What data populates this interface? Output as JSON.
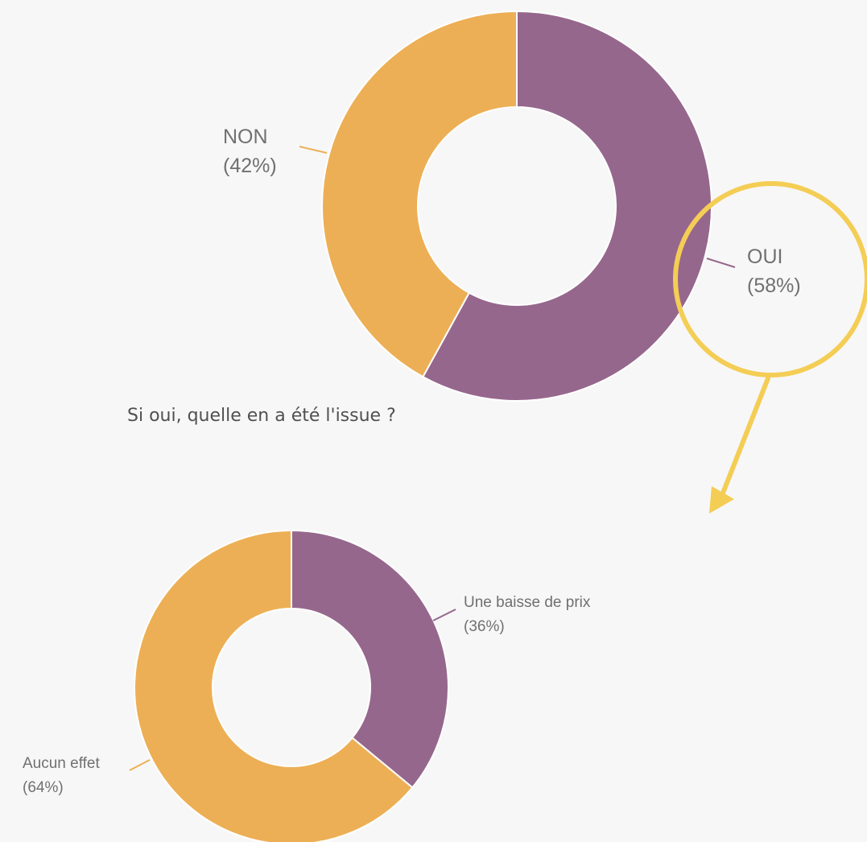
{
  "colors": {
    "oui": "#96678c",
    "non": "#edaf55",
    "highlight": "#f4cd55",
    "label_text": "#707070",
    "background": "#f7f7f7"
  },
  "question": "Si oui, quelle en a été l'issue ?",
  "chart_data": [
    {
      "type": "pie",
      "donut": true,
      "slices": [
        {
          "name": "OUI",
          "value": 58,
          "label": "OUI",
          "pct_label": "(58%)",
          "color": "#96678c"
        },
        {
          "name": "NON",
          "value": 42,
          "label": "NON",
          "pct_label": "(42%)",
          "color": "#edaf55"
        }
      ]
    },
    {
      "type": "pie",
      "donut": true,
      "slices": [
        {
          "name": "Une baisse de prix",
          "value": 36,
          "label": "Une baisse de prix",
          "pct_label": "(36%)",
          "color": "#96678c"
        },
        {
          "name": "Aucun effet",
          "value": 64,
          "label": "Aucun effet",
          "pct_label": "(64%)",
          "color": "#edaf55"
        }
      ]
    }
  ]
}
